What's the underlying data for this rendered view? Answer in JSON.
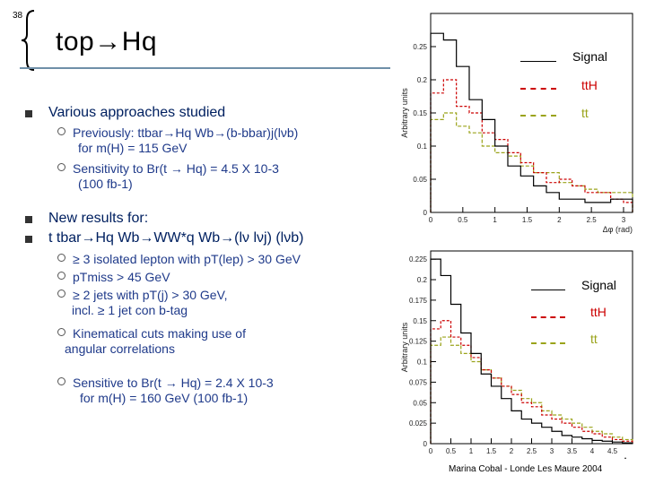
{
  "slide_number": "38",
  "title": "top→Hq",
  "bullets": [
    {
      "text": "Various approaches studied",
      "sub": [
        {
          "lines": [
            "Previously: ttbar→Hq Wb→(b-bbar)j(lνb)",
            "for m(H) = 115 GeV"
          ]
        },
        {
          "lines": [
            "Sensitivity to Br(t → Hq) = 4.5 X 10-3",
            "(100 fb-1)"
          ]
        }
      ]
    },
    {
      "text": "New results for:"
    },
    {
      "text": "t tbar→Hq Wb→WW*q Wb→(lν lνj) (lνb)",
      "sub": [
        {
          "lines": [
            "≥ 3 isolated lepton with pT(lep) > 30 GeV"
          ]
        },
        {
          "lines": [
            "pTmiss > 45 GeV"
          ]
        },
        {
          "lines": [
            "≥ 2 jets with pT(j) > 30 GeV,",
            "incl. ≥ 1 jet con b-tag"
          ]
        },
        {
          "lines": [
            "Kinematical cuts making use of",
            "angular correlations"
          ]
        },
        {
          "lines": [
            "Sensitive to Br(t → Hq) = 2.4 X 10-3",
            "for m(H) = 160 GeV   (100 fb-1)"
          ]
        }
      ]
    }
  ],
  "legend_top": {
    "signal": "Signal",
    "tth": "ttH",
    "tt": "tt"
  },
  "legend_bottom": {
    "signal": "Signal",
    "tth": "ttH",
    "tt": "tt"
  },
  "colors": {
    "signal": "#000000",
    "tth": "#cc0000",
    "tt": "#9aa31a",
    "bullet_text": "#002060",
    "sub_text": "#1f3a8a"
  },
  "footer": "Marina Cobal -  Londe Les Maure 2004",
  "chart_data": [
    {
      "type": "histogram",
      "ylabel": "Arbitrary units",
      "xlabel": "Δφ (rad)",
      "xlim": [
        0,
        3.14
      ],
      "ylim": [
        0,
        0.3
      ],
      "x_ticks": [
        "0",
        "0.5",
        "1",
        "1.5",
        "2",
        "2.5",
        "3"
      ],
      "y_ticks": [
        "0",
        "0.05",
        "0.1",
        "0.15",
        "0.2",
        "0.25"
      ],
      "bin_edges": [
        0,
        0.2,
        0.4,
        0.6,
        0.8,
        1.0,
        1.2,
        1.4,
        1.6,
        1.8,
        2.0,
        2.2,
        2.4,
        2.6,
        2.8,
        3.0,
        3.14
      ],
      "series": [
        {
          "key": "signal",
          "style": "solid",
          "values": [
            0.27,
            0.26,
            0.22,
            0.17,
            0.14,
            0.1,
            0.07,
            0.055,
            0.04,
            0.03,
            0.02,
            0.02,
            0.015,
            0.015,
            0.02,
            0.02
          ]
        },
        {
          "key": "tth",
          "style": "dashed",
          "values": [
            0.18,
            0.2,
            0.16,
            0.15,
            0.12,
            0.11,
            0.09,
            0.075,
            0.06,
            0.045,
            0.05,
            0.04,
            0.03,
            0.03,
            0.02,
            0.015
          ]
        },
        {
          "key": "tt",
          "style": "dashed",
          "values": [
            0.14,
            0.15,
            0.13,
            0.12,
            0.1,
            0.09,
            0.085,
            0.07,
            0.06,
            0.06,
            0.045,
            0.04,
            0.035,
            0.03,
            0.03,
            0.03
          ]
        }
      ]
    },
    {
      "type": "histogram",
      "ylabel": "Arbitrary units",
      "xlabel": "Δη",
      "xlim": [
        0,
        5
      ],
      "ylim": [
        0,
        0.235
      ],
      "x_ticks": [
        "0",
        "0.5",
        "1",
        "1.5",
        "2",
        "2.5",
        "3",
        "3.5",
        "4",
        "4.5"
      ],
      "y_ticks": [
        "0",
        "0.025",
        "0.05",
        "0.075",
        "0.1",
        "0.125",
        "0.15",
        "0.175",
        "0.2",
        "0.225"
      ],
      "bin_edges": [
        0,
        0.25,
        0.5,
        0.75,
        1.0,
        1.25,
        1.5,
        1.75,
        2.0,
        2.25,
        2.5,
        2.75,
        3.0,
        3.25,
        3.5,
        3.75,
        4.0,
        4.25,
        4.5,
        4.75,
        5.0
      ],
      "series": [
        {
          "key": "signal",
          "style": "solid",
          "values": [
            0.225,
            0.205,
            0.17,
            0.135,
            0.11,
            0.085,
            0.07,
            0.055,
            0.04,
            0.03,
            0.025,
            0.02,
            0.015,
            0.01,
            0.008,
            0.006,
            0.004,
            0.003,
            0.002,
            0.001
          ]
        },
        {
          "key": "tth",
          "style": "dashed",
          "values": [
            0.14,
            0.15,
            0.13,
            0.12,
            0.105,
            0.09,
            0.08,
            0.07,
            0.06,
            0.05,
            0.045,
            0.035,
            0.03,
            0.025,
            0.02,
            0.015,
            0.012,
            0.008,
            0.005,
            0.003
          ]
        },
        {
          "key": "tt",
          "style": "dashed",
          "values": [
            0.12,
            0.13,
            0.12,
            0.11,
            0.1,
            0.09,
            0.08,
            0.07,
            0.065,
            0.055,
            0.05,
            0.04,
            0.035,
            0.03,
            0.025,
            0.02,
            0.015,
            0.012,
            0.008,
            0.005
          ]
        }
      ]
    }
  ]
}
